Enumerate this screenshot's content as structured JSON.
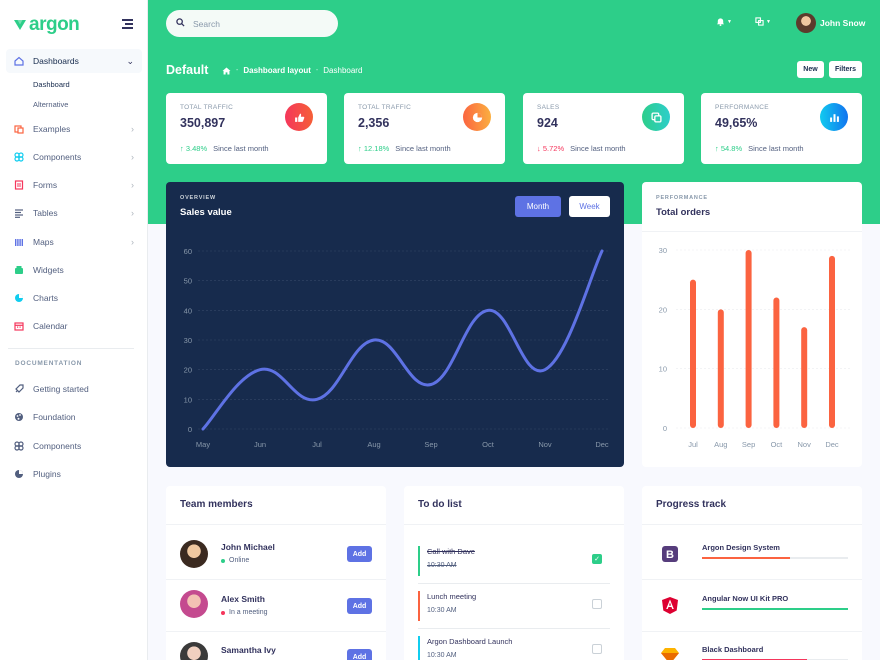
{
  "brand": {
    "name": "argon",
    "color": "#2dce89"
  },
  "sidebar": {
    "items": [
      {
        "label": "Dashboards",
        "icon": "house-icon",
        "color": "#5e72e4",
        "chevron": true
      },
      {
        "label": "Examples",
        "icon": "ship-icon",
        "color": "#fb6340",
        "chevron": true
      },
      {
        "label": "Components",
        "icon": "components-icon",
        "color": "#11cdef",
        "chevron": true
      },
      {
        "label": "Forms",
        "icon": "forms-icon",
        "color": "#f5365c",
        "chevron": true
      },
      {
        "label": "Tables",
        "icon": "list-icon",
        "color": "#525f7f",
        "chevron": true
      },
      {
        "label": "Maps",
        "icon": "map-icon",
        "color": "#5e72e4",
        "chevron": true
      },
      {
        "label": "Widgets",
        "icon": "archive-icon",
        "color": "#2dce89",
        "chevron": false
      },
      {
        "label": "Charts",
        "icon": "pie-chart-icon",
        "color": "#11cdef",
        "chevron": false
      },
      {
        "label": "Calendar",
        "icon": "calendar-icon",
        "color": "#f5365c",
        "chevron": false
      }
    ],
    "subitems": [
      "Dashboard",
      "Alternative"
    ],
    "documentation_heading": "DOCUMENTATION",
    "docs": [
      {
        "label": "Getting started",
        "icon": "spaceship-icon"
      },
      {
        "label": "Foundation",
        "icon": "palette-icon"
      },
      {
        "label": "Components",
        "icon": "ui-components-icon"
      },
      {
        "label": "Plugins",
        "icon": "pie-chart-icon"
      }
    ]
  },
  "topbar": {
    "search_placeholder": "Search",
    "user_name": "John Snow"
  },
  "header": {
    "title": "Default",
    "breadcrumb": [
      "Dashboard layout",
      "Dashboard"
    ],
    "new_label": "New",
    "filters_label": "Filters"
  },
  "stats": [
    {
      "label": "TOTAL TRAFFIC",
      "value": "350,897",
      "change": "3.48%",
      "trend": "up",
      "since": "Since last month",
      "icon": "active-40-icon",
      "icon_color": "#f5365c",
      "icon_color2": "#f56036"
    },
    {
      "label": "TOTAL TRAFFIC",
      "value": "2,356",
      "change": "12.18%",
      "trend": "up",
      "since": "Since last month",
      "icon": "chart-pie-icon",
      "icon_color": "#fb6340",
      "icon_color2": "#fbb140"
    },
    {
      "label": "SALES",
      "value": "924",
      "change": "5.72%",
      "trend": "down",
      "since": "Since last month",
      "icon": "money-coins-icon",
      "icon_color": "#2dce89",
      "icon_color2": "#2dcecc"
    },
    {
      "label": "PERFORMANCE",
      "value": "49,65%",
      "change": "54.8%",
      "trend": "up",
      "since": "Since last month",
      "icon": "chart-bar-icon",
      "icon_color": "#11cdef",
      "icon_color2": "#1171ef"
    }
  ],
  "sales_card": {
    "subtitle": "OVERVIEW",
    "title": "Sales value",
    "month_label": "Month",
    "week_label": "Week"
  },
  "orders_card": {
    "subtitle": "PERFORMANCE",
    "title": "Total orders"
  },
  "chart_data": [
    {
      "type": "line",
      "x": [
        "May",
        "Jun",
        "Jul",
        "Aug",
        "Sep",
        "Oct",
        "Nov",
        "Dec"
      ],
      "series": [
        {
          "values": [
            0,
            20,
            10,
            30,
            15,
            40,
            20,
            60
          ]
        }
      ],
      "ylim": [
        0,
        60
      ],
      "yticks": [
        0,
        10,
        20,
        30,
        40,
        50,
        60
      ],
      "grid": true,
      "color": "#5e72e4"
    },
    {
      "type": "bar",
      "categories": [
        "Jul",
        "Aug",
        "Sep",
        "Oct",
        "Nov",
        "Dec"
      ],
      "values": [
        25,
        20,
        30,
        22,
        17,
        29
      ],
      "ylim": [
        0,
        30
      ],
      "yticks": [
        0,
        10,
        20,
        30
      ],
      "grid": true,
      "color": "#fb6340"
    }
  ],
  "team": {
    "title": "Team members",
    "add_label": "Add",
    "members": [
      {
        "name": "John Michael",
        "status": "Online",
        "status_color": "#2dce89"
      },
      {
        "name": "Alex Smith",
        "status": "In a meeting",
        "status_color": "#fb6340"
      },
      {
        "name": "Samantha Ivy",
        "status": "",
        "status_color": "#f5365c"
      }
    ]
  },
  "todo": {
    "title": "To do list",
    "items": [
      {
        "title": "Call with Dave",
        "time": "10:30 AM",
        "done": true,
        "color": "#2dce89"
      },
      {
        "title": "Lunch meeting",
        "time": "10:30 AM",
        "done": false,
        "color": "#fb6340"
      },
      {
        "title": "Argon Dashboard Launch",
        "time": "10:30 AM",
        "done": false,
        "color": "#11cdef"
      }
    ]
  },
  "progress": {
    "title": "Progress track",
    "items": [
      {
        "name": "Argon Design System",
        "percent": 60,
        "color": "#fb6340",
        "logo": "bootstrap-logo"
      },
      {
        "name": "Angular Now UI Kit PRO",
        "percent": 100,
        "color": "#2dce89",
        "logo": "angular-logo"
      },
      {
        "name": "Black Dashboard",
        "percent": 72,
        "color": "#f5365c",
        "logo": "sketch-logo"
      }
    ]
  }
}
